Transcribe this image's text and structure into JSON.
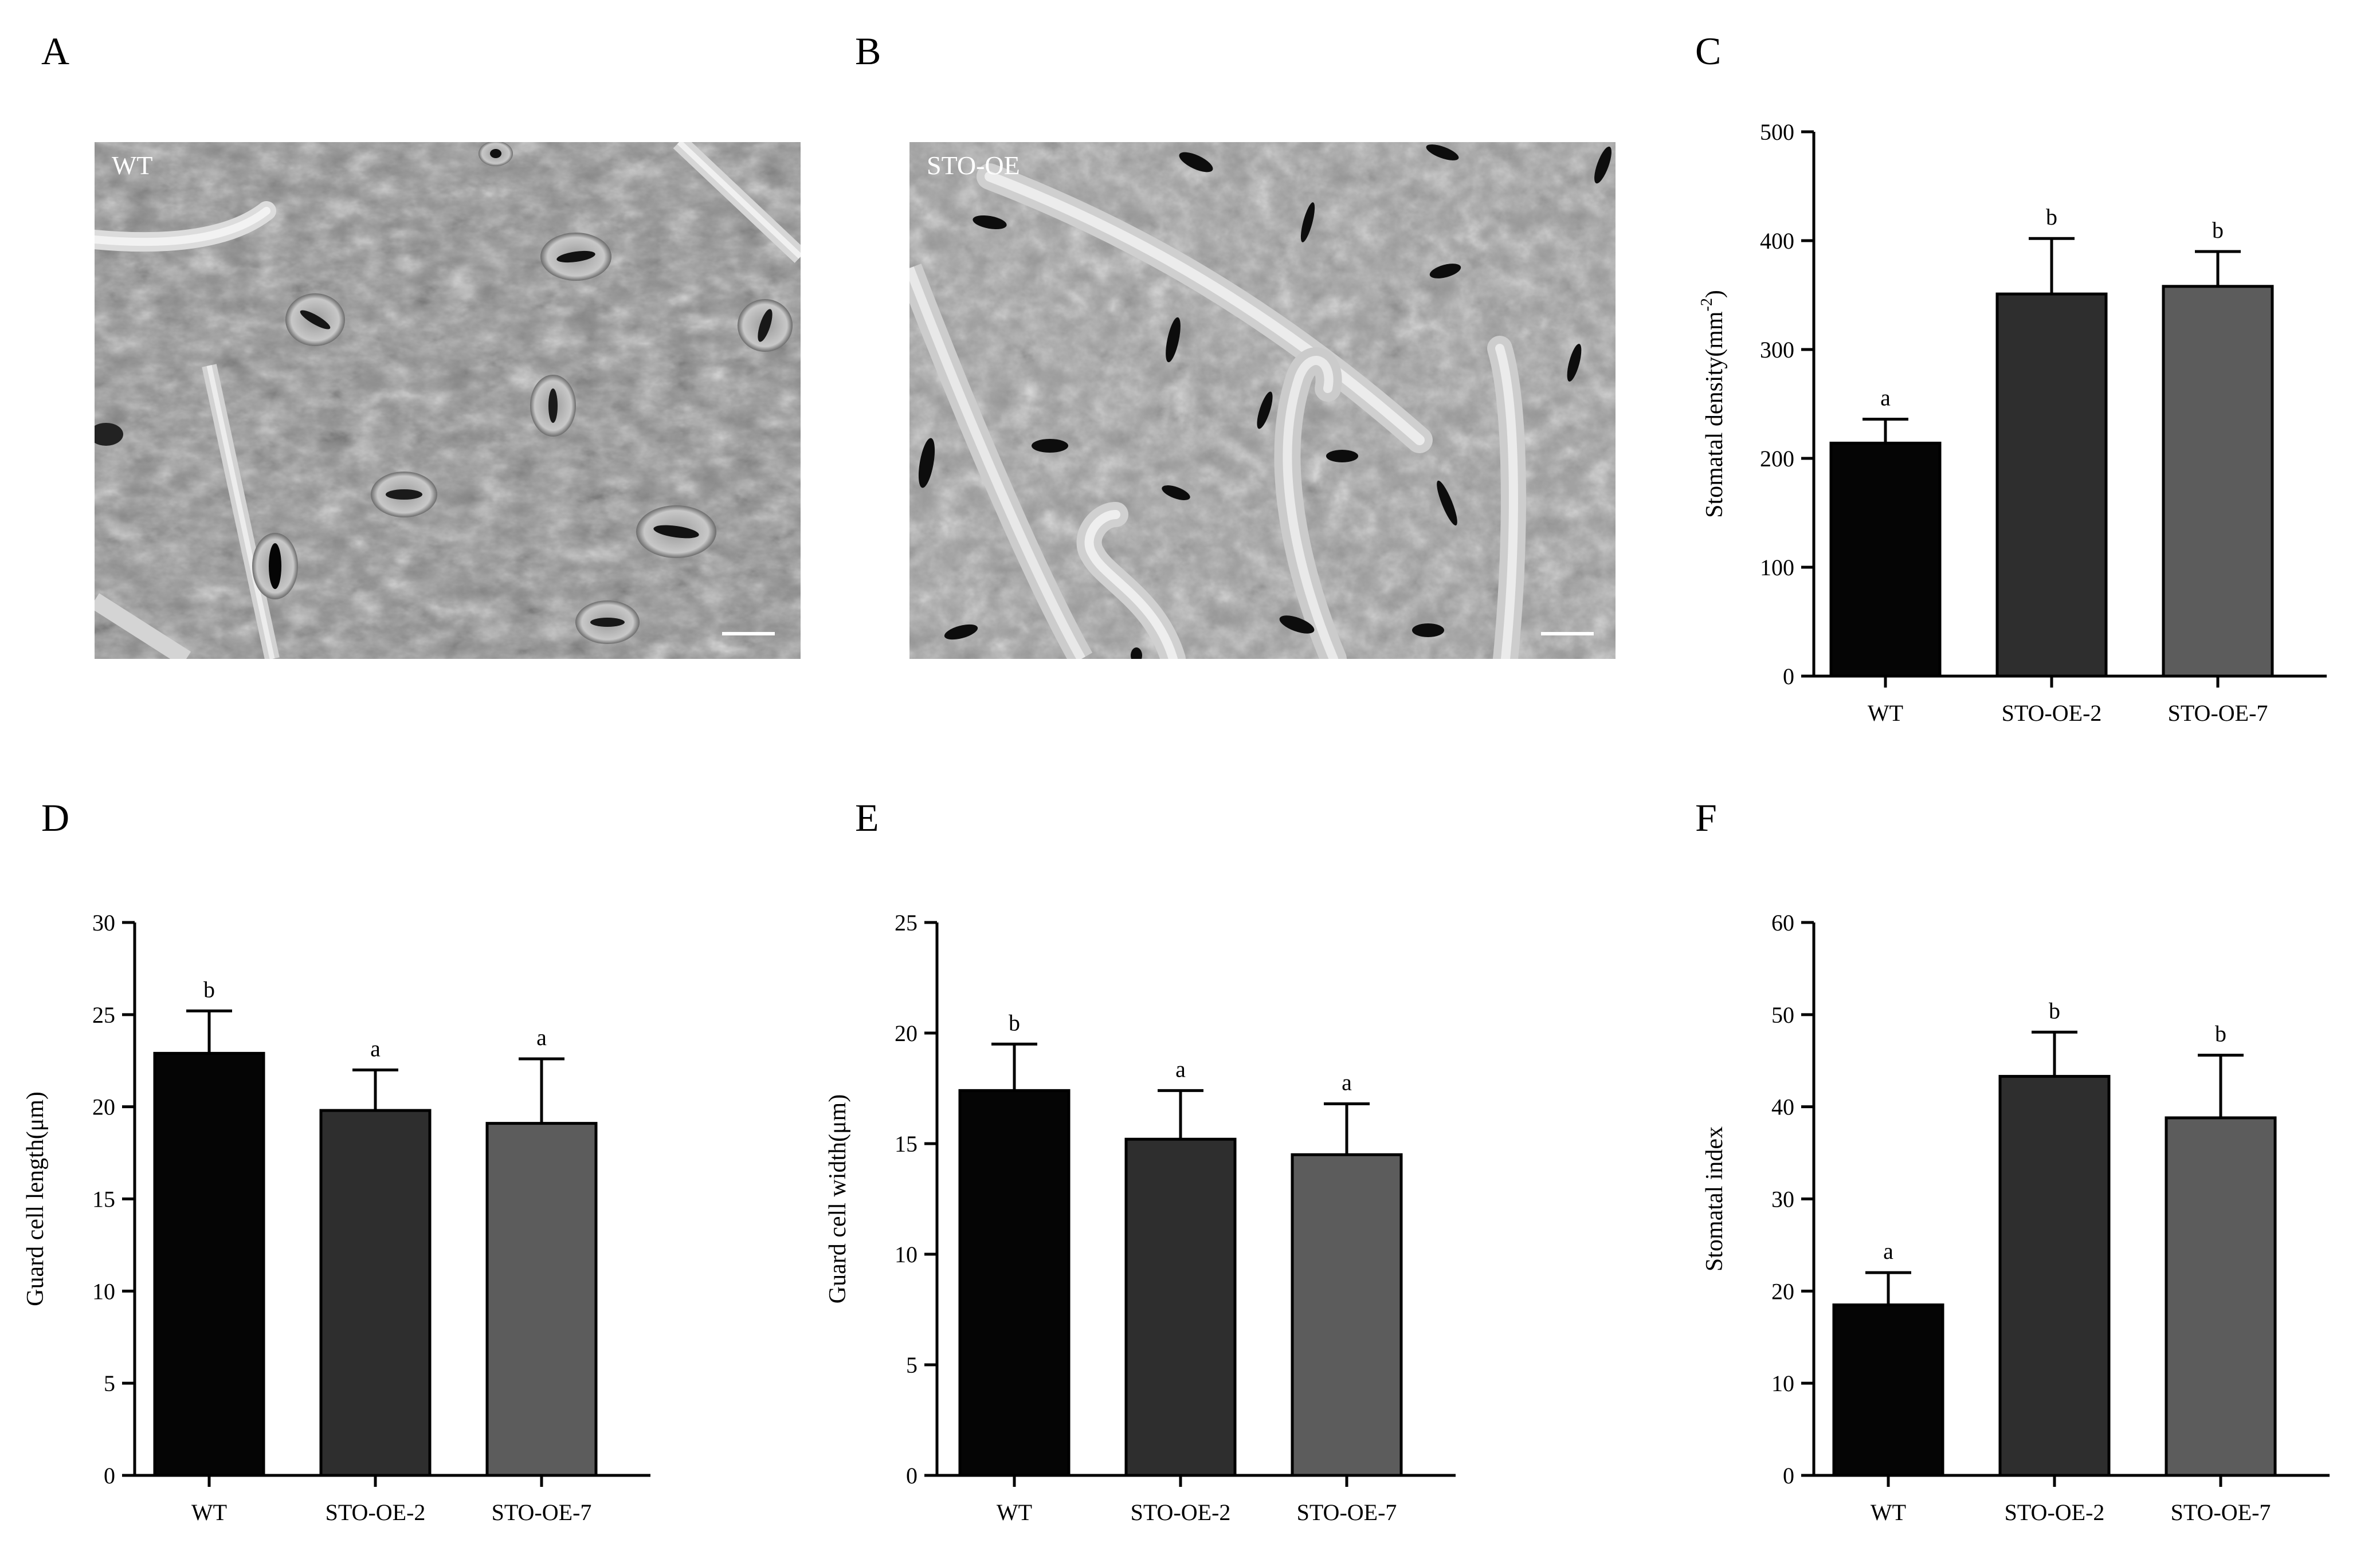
{
  "panels": {
    "A": "A",
    "B": "B",
    "C": "C",
    "D": "D",
    "E": "E",
    "F": "F"
  },
  "micrographs": [
    {
      "label": "WT"
    },
    {
      "label": "STO-OE"
    }
  ],
  "colors": {
    "WT": "#050505",
    "STO-OE-2": "#2e2e2e",
    "STO-OE-7": "#5c5c5c"
  },
  "chart_data": [
    {
      "panel": "C",
      "type": "bar",
      "categories": [
        "WT",
        "STO-OE-2",
        "STO-OE-7"
      ],
      "values": [
        214,
        351,
        358
      ],
      "errors": [
        22,
        51,
        32
      ],
      "significance": [
        "a",
        "b",
        "b"
      ],
      "ylabel_main": "Stomatal density(mm",
      "ylabel_sup": "-2",
      "ylabel_end": ")",
      "ylim": [
        0,
        500
      ],
      "yticks": [
        0,
        100,
        200,
        300,
        400,
        500
      ]
    },
    {
      "panel": "D",
      "type": "bar",
      "categories": [
        "WT",
        "STO-OE-2",
        "STO-OE-7"
      ],
      "values": [
        22.9,
        19.8,
        19.1
      ],
      "errors": [
        2.3,
        2.2,
        3.5
      ],
      "significance": [
        "b",
        "a",
        "a"
      ],
      "ylabel_main": "Guard cell length(μm)",
      "ylim": [
        0,
        30
      ],
      "yticks": [
        0,
        5,
        10,
        15,
        20,
        25,
        30
      ]
    },
    {
      "panel": "E",
      "type": "bar",
      "categories": [
        "WT",
        "STO-OE-2",
        "STO-OE-7"
      ],
      "values": [
        17.4,
        15.2,
        14.5
      ],
      "errors": [
        2.1,
        2.2,
        2.3
      ],
      "significance": [
        "b",
        "a",
        "a"
      ],
      "ylabel_main": "Guard cell width(μm)",
      "ylim": [
        0,
        25
      ],
      "yticks": [
        0,
        5,
        10,
        15,
        20,
        25
      ]
    },
    {
      "panel": "F",
      "type": "bar",
      "categories": [
        "WT",
        "STO-OE-2",
        "STO-OE-7"
      ],
      "values": [
        18.5,
        43.3,
        38.8
      ],
      "errors": [
        3.5,
        4.8,
        6.8
      ],
      "significance": [
        "a",
        "b",
        "b"
      ],
      "ylabel_main": "Stomatal index",
      "ylim": [
        0,
        60
      ],
      "yticks": [
        0,
        10,
        20,
        30,
        40,
        50,
        60
      ]
    }
  ]
}
